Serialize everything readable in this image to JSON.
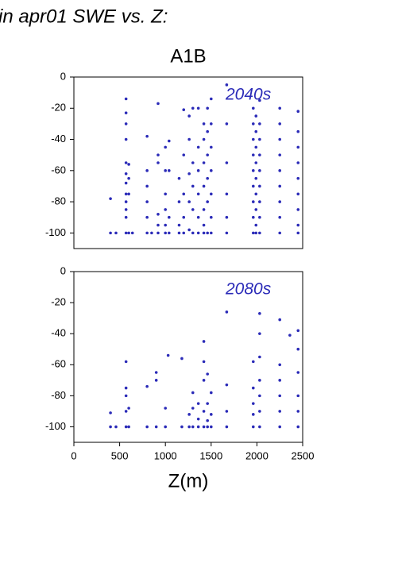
{
  "header": {
    "title": "in apr01 SWE vs. Z:"
  },
  "chart_data": [
    {
      "type": "scatter",
      "title": "A1B",
      "annotation": "2040s",
      "color": "#2b2bb8",
      "xlim": [
        0,
        2500
      ],
      "ylim": [
        -110,
        0
      ],
      "yticks": [
        0,
        -20,
        -40,
        -60,
        -80,
        -100
      ],
      "x": [
        400,
        400,
        460,
        570,
        570,
        570,
        570,
        570,
        570,
        570,
        570,
        570,
        570,
        570,
        570,
        600,
        600,
        600,
        600,
        640,
        800,
        800,
        800,
        800,
        800,
        800,
        850,
        920,
        920,
        920,
        920,
        920,
        920,
        1000,
        1000,
        1000,
        1000,
        1000,
        1000,
        1040,
        1040,
        1040,
        1040,
        1150,
        1150,
        1150,
        1150,
        1200,
        1200,
        1200,
        1200,
        1200,
        1260,
        1260,
        1260,
        1260,
        1260,
        1300,
        1300,
        1300,
        1300,
        1300,
        1360,
        1360,
        1360,
        1360,
        1360,
        1360,
        1420,
        1420,
        1420,
        1420,
        1420,
        1420,
        1420,
        1460,
        1460,
        1460,
        1460,
        1460,
        1460,
        1500,
        1500,
        1500,
        1500,
        1500,
        1500,
        1500,
        1670,
        1670,
        1670,
        1670,
        1670,
        1670,
        1960,
        1960,
        1960,
        1960,
        1960,
        1960,
        1960,
        1960,
        1960,
        1990,
        1990,
        1990,
        1990,
        1990,
        1990,
        1990,
        1990,
        1990,
        2030,
        2030,
        2030,
        2030,
        2030,
        2030,
        2030,
        2030,
        2030,
        2250,
        2250,
        2250,
        2250,
        2250,
        2250,
        2250,
        2250,
        2250,
        2450,
        2450,
        2450,
        2450,
        2450,
        2450,
        2450,
        2450,
        2450
      ],
      "values": [
        -78,
        -100,
        -100,
        -14,
        -23,
        -30,
        -40,
        -55,
        -62,
        -68,
        -75,
        -80,
        -85,
        -90,
        -100,
        -56,
        -65,
        -75,
        -100,
        -100,
        -38,
        -60,
        -70,
        -80,
        -90,
        -100,
        -100,
        -17,
        -50,
        -55,
        -88,
        -95,
        -100,
        -45,
        -60,
        -75,
        -85,
        -95,
        -100,
        -41,
        -60,
        -90,
        -100,
        -65,
        -80,
        -95,
        -100,
        -21,
        -50,
        -75,
        -90,
        -100,
        -25,
        -40,
        -62,
        -80,
        -98,
        -20,
        -55,
        -70,
        -85,
        -100,
        -20,
        -45,
        -60,
        -75,
        -90,
        -100,
        -30,
        -40,
        -55,
        -70,
        -85,
        -95,
        -100,
        -20,
        -35,
        -50,
        -65,
        -80,
        -100,
        -14,
        -30,
        -45,
        -60,
        -75,
        -90,
        -100,
        -5,
        -30,
        -55,
        -75,
        -90,
        -100,
        -20,
        -30,
        -40,
        -50,
        -60,
        -70,
        -80,
        -90,
        -100,
        -25,
        -35,
        -45,
        -55,
        -65,
        -75,
        -85,
        -95,
        -100,
        -15,
        -30,
        -40,
        -50,
        -60,
        -70,
        -80,
        -90,
        -100,
        -20,
        -30,
        -40,
        -50,
        -60,
        -70,
        -80,
        -90,
        -100,
        -22,
        -35,
        -45,
        -55,
        -65,
        -75,
        -85,
        -95,
        -100
      ]
    },
    {
      "type": "scatter",
      "annotation": "2080s",
      "x_label": "Z(m)",
      "color": "#2b2bb8",
      "xlim": [
        0,
        2500
      ],
      "xticks": [
        0,
        500,
        1000,
        1500,
        2000,
        2500
      ],
      "ylim": [
        -110,
        0
      ],
      "yticks": [
        0,
        -20,
        -40,
        -60,
        -80,
        -100
      ],
      "x": [
        400,
        400,
        460,
        570,
        570,
        570,
        570,
        570,
        600,
        600,
        800,
        800,
        900,
        900,
        900,
        1000,
        1000,
        1030,
        1180,
        1180,
        1260,
        1260,
        1300,
        1300,
        1300,
        1360,
        1360,
        1360,
        1420,
        1420,
        1420,
        1420,
        1420,
        1460,
        1460,
        1460,
        1460,
        1500,
        1500,
        1500,
        1670,
        1670,
        1670,
        1670,
        1960,
        1960,
        1960,
        1960,
        1960,
        2030,
        2030,
        2030,
        2030,
        2030,
        2030,
        2030,
        2250,
        2250,
        2250,
        2250,
        2250,
        2250,
        2360,
        2450,
        2450,
        2450,
        2450,
        2450,
        2450
      ],
      "values": [
        -91,
        -100,
        -100,
        -58,
        -75,
        -80,
        -90,
        -100,
        -88,
        -100,
        -74,
        -100,
        -70,
        -65,
        -100,
        -88,
        -100,
        -54,
        -56,
        -100,
        -92,
        -100,
        -78,
        -88,
        -100,
        -85,
        -95,
        -100,
        -45,
        -58,
        -70,
        -90,
        -100,
        -66,
        -85,
        -96,
        -100,
        -78,
        -92,
        -100,
        -26,
        -73,
        -90,
        -100,
        -58,
        -75,
        -85,
        -92,
        -100,
        -27,
        -40,
        -55,
        -70,
        -80,
        -90,
        -100,
        -31,
        -60,
        -70,
        -80,
        -90,
        -100,
        -41,
        -38,
        -50,
        -65,
        -80,
        -90,
        -100
      ]
    }
  ]
}
